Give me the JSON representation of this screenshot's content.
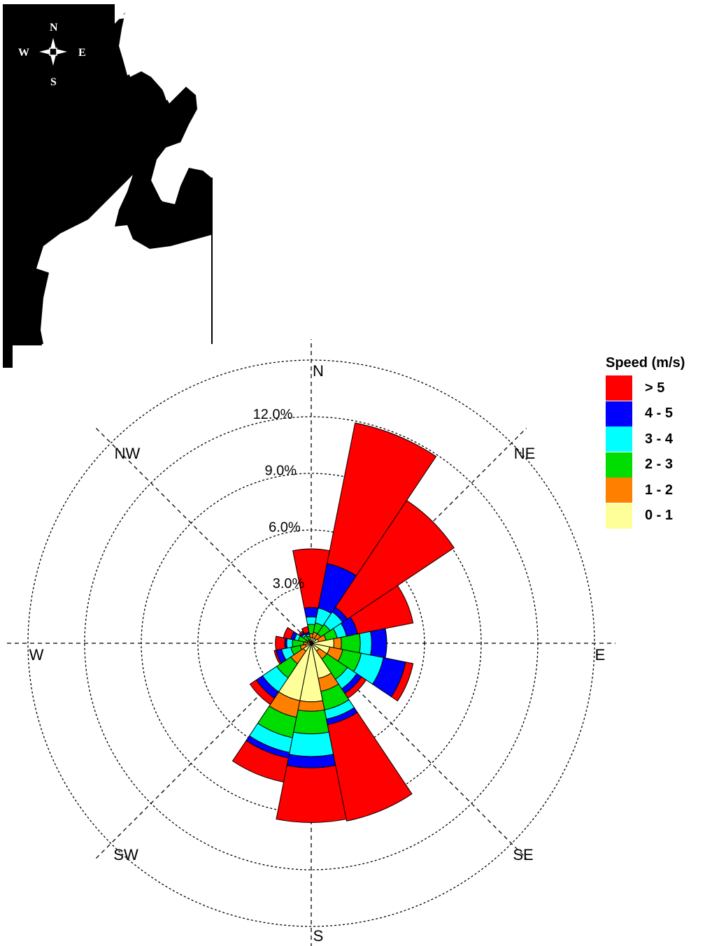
{
  "map": {
    "compass": {
      "n": "N",
      "s": "S",
      "e": "E",
      "w": "W"
    }
  },
  "chart_data": {
    "type": "wind-rose",
    "directions": [
      "N",
      "NNE",
      "NE",
      "ENE",
      "E",
      "ESE",
      "SE",
      "SSE",
      "S",
      "SSW",
      "SW",
      "WSW",
      "W",
      "WNW",
      "NW",
      "NNW"
    ],
    "compass_labels": [
      "N",
      "NE",
      "E",
      "SE",
      "S",
      "SW",
      "W",
      "NW"
    ],
    "radial_ticks": [
      {
        "value": 3,
        "label": "3.0%"
      },
      {
        "value": 6,
        "label": "6.0%"
      },
      {
        "value": 9,
        "label": "9.0%"
      },
      {
        "value": 12,
        "label": "12.0%"
      }
    ],
    "radial_max": 15,
    "legend_title": "Speed (m/s)",
    "series": [
      {
        "name": "0 - 1",
        "color": "#FFFF99",
        "values": [
          0.3,
          0.3,
          0.3,
          0.4,
          1.2,
          1.0,
          0.5,
          1.9,
          3.1,
          3.1,
          0.5,
          0.3,
          0.2,
          0.2,
          0.1,
          0.1
        ]
      },
      {
        "name": "1 - 2",
        "color": "#FF8000",
        "values": [
          0.2,
          0.3,
          0.3,
          0.4,
          0.4,
          0.7,
          0.5,
          0.7,
          0.5,
          0.9,
          0.8,
          0.3,
          0.2,
          0.1,
          0.1,
          0.1
        ]
      },
      {
        "name": "2 - 3",
        "color": "#00DD00",
        "values": [
          0.5,
          0.5,
          0.6,
          0.6,
          1.0,
          1.0,
          1.3,
          1.0,
          1.2,
          1.1,
          0.9,
          0.5,
          0.6,
          0.4,
          0.3,
          0.2
        ]
      },
      {
        "name": "3 - 4",
        "color": "#00FFFF",
        "values": [
          0.4,
          0.8,
          0.8,
          0.5,
          0.6,
          1.2,
          0.6,
          0.5,
          1.2,
          0.8,
          0.9,
          0.5,
          0.3,
          0.2,
          0.1,
          0.1
        ]
      },
      {
        "name": "4 - 5",
        "color": "#0000FF",
        "values": [
          0.5,
          2.4,
          0.3,
          0.6,
          0.8,
          1.2,
          0.3,
          0.3,
          0.6,
          0.3,
          0.4,
          0.3,
          0.1,
          0.2,
          0.1,
          0.1
        ]
      },
      {
        "name": "> 5",
        "color": "#FF0000",
        "values": [
          3.1,
          7.6,
          6.8,
          3.0,
          0.0,
          0.4,
          0.3,
          5.2,
          2.9,
          1.3,
          0.4,
          0.1,
          0.5,
          0.4,
          0.1,
          0.3
        ]
      }
    ]
  }
}
